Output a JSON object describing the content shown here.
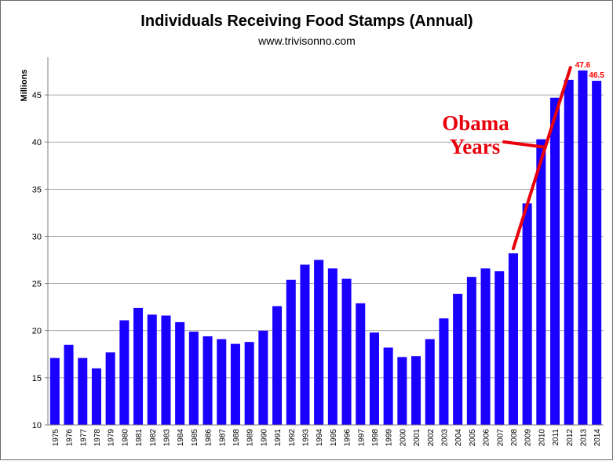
{
  "chart_data": {
    "type": "bar",
    "title": "Individuals Receiving Food Stamps (Annual)",
    "subtitle": "www.trivisonno.com",
    "xlabel": "",
    "ylabel": "Millions",
    "ylim": [
      10,
      48.5
    ],
    "yticks": [
      10,
      15,
      20,
      25,
      30,
      35,
      40,
      45
    ],
    "grid": true,
    "bar_color": "#1a00ff",
    "categories": [
      "1975",
      "1976",
      "1977",
      "1978",
      "1979",
      "1980",
      "1981",
      "1982",
      "1983",
      "1984",
      "1985",
      "1986",
      "1987",
      "1988",
      "1989",
      "1990",
      "1991",
      "1992",
      "1993",
      "1994",
      "1995",
      "1996",
      "1997",
      "1998",
      "1999",
      "2000",
      "2001",
      "2002",
      "2003",
      "2004",
      "2005",
      "2006",
      "2007",
      "2008",
      "2009",
      "2010",
      "2011",
      "2012",
      "2013",
      "2014"
    ],
    "values": [
      17.1,
      18.5,
      17.1,
      16.0,
      17.7,
      21.1,
      22.4,
      21.7,
      21.6,
      20.9,
      19.9,
      19.4,
      19.1,
      18.6,
      18.8,
      20.0,
      22.6,
      25.4,
      27.0,
      27.5,
      26.6,
      25.5,
      22.9,
      19.8,
      18.2,
      17.2,
      17.3,
      19.1,
      21.3,
      23.9,
      25.7,
      26.6,
      26.3,
      28.2,
      33.5,
      40.3,
      44.7,
      46.6,
      47.6,
      46.5
    ],
    "data_labels": [
      {
        "category": "2013",
        "text": "47.6",
        "color": "#ff0000"
      },
      {
        "category": "2014",
        "text": "46.5",
        "color": "#ff0000"
      }
    ],
    "annotations": [
      {
        "lines": [
          "Obama",
          "Years"
        ],
        "color": "#e8000a"
      }
    ],
    "annotation_color": "#e8000a",
    "annotation_line_from": {
      "category": "2008",
      "y": 28.7
    },
    "annotation_line_to": {
      "category": "2012",
      "y": 47.9
    }
  }
}
